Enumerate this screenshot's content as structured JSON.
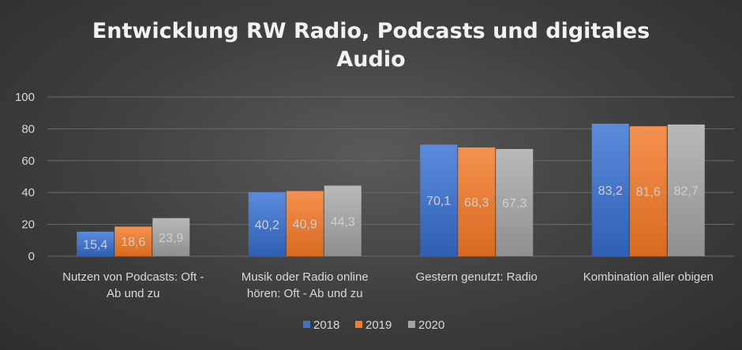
{
  "chart_data": {
    "type": "bar",
    "title_lines": [
      "Entwicklung RW Radio, Podcasts und digitales",
      "Audio"
    ],
    "categories": [
      [
        "Nutzen von Podcasts: Oft -",
        "Ab und zu"
      ],
      [
        "Musik oder Radio online",
        "hören: Oft - Ab und zu"
      ],
      [
        "Gestern genutzt: Radio"
      ],
      [
        "Kombination aller obigen"
      ]
    ],
    "series": [
      {
        "name": "2018",
        "values": [
          15.4,
          40.2,
          70.1,
          83.2
        ],
        "labels": [
          "15,4",
          "40,2",
          "70,1",
          "83,2"
        ],
        "color": "#4472c4"
      },
      {
        "name": "2019",
        "values": [
          18.6,
          40.9,
          68.3,
          81.6
        ],
        "labels": [
          "18,6",
          "40,9",
          "68,3",
          "81,6"
        ],
        "color": "#ed7d31"
      },
      {
        "name": "2020",
        "values": [
          23.9,
          44.3,
          67.3,
          82.7
        ],
        "labels": [
          "23,9",
          "44,3",
          "67,3",
          "82,7"
        ],
        "color": "#a5a5a5"
      }
    ],
    "y_ticks": [
      "0",
      "20",
      "40",
      "60",
      "80",
      "100"
    ],
    "ylim": [
      0,
      100
    ],
    "grid": true,
    "legend_position": "bottom"
  }
}
